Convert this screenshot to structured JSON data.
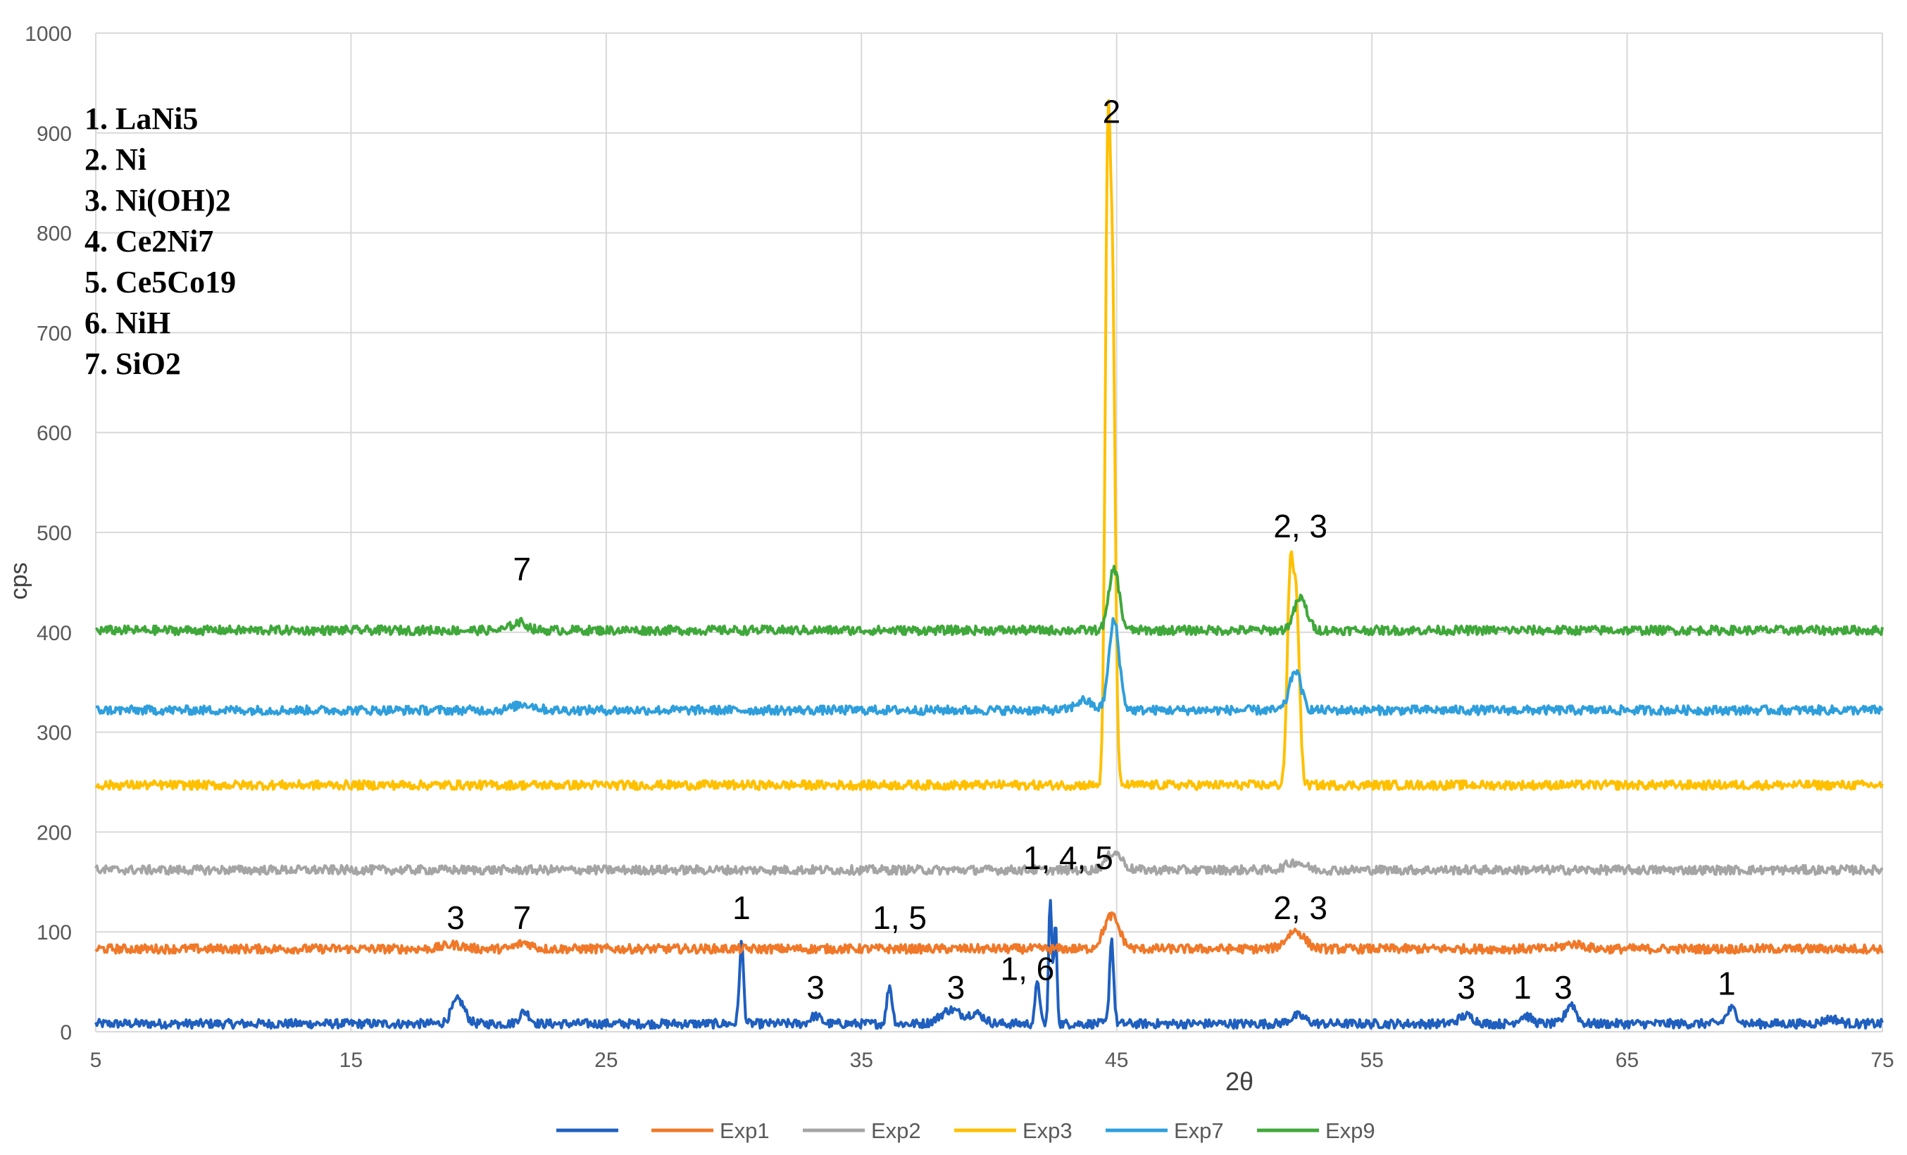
{
  "chart_data": {
    "type": "line",
    "title": "",
    "xlabel": "2θ",
    "ylabel": "cps",
    "xlim": [
      5,
      75
    ],
    "ylim": [
      0,
      1000
    ],
    "xticks": [
      5,
      15,
      25,
      35,
      45,
      55,
      65,
      75
    ],
    "yticks": [
      0,
      100,
      200,
      300,
      400,
      500,
      600,
      700,
      800,
      900,
      1000
    ],
    "grid": true,
    "legend_position": "bottom",
    "phase_list": [
      "1. LaNi5",
      "2. Ni",
      "3. Ni(OH)2",
      "4. Ce2Ni7",
      "5. Ce5Co19",
      "6. NiH",
      "7. SiO2"
    ],
    "series": [
      {
        "name": "",
        "color": "#1f5fbf",
        "baseline": 8,
        "peaks": [
          [
            19.2,
            24,
            0.25
          ],
          [
            21.8,
            12,
            0.2
          ],
          [
            30.3,
            82,
            0.08
          ],
          [
            33.2,
            8,
            0.2
          ],
          [
            36.1,
            38,
            0.1
          ],
          [
            38.5,
            14,
            0.4
          ],
          [
            39.5,
            10,
            0.3
          ],
          [
            41.9,
            45,
            0.08
          ],
          [
            42.4,
            128,
            0.06
          ],
          [
            42.6,
            100,
            0.06
          ],
          [
            44.8,
            85,
            0.08
          ],
          [
            52.1,
            8,
            0.3
          ],
          [
            58.7,
            8,
            0.3
          ],
          [
            61.0,
            8,
            0.25
          ],
          [
            62.8,
            20,
            0.2
          ],
          [
            69.1,
            15,
            0.2
          ],
          [
            73.0,
            5,
            0.3
          ]
        ]
      },
      {
        "name": "Exp1",
        "color": "#f07828",
        "baseline": 83,
        "peaks": [
          [
            19.0,
            4,
            0.4
          ],
          [
            21.8,
            6,
            0.3
          ],
          [
            44.8,
            33,
            0.3
          ],
          [
            52.0,
            18,
            0.35
          ],
          [
            62.9,
            5,
            0.4
          ]
        ]
      },
      {
        "name": "Exp2",
        "color": "#a5a5a5",
        "baseline": 162,
        "peaks": [
          [
            44.9,
            18,
            0.3
          ],
          [
            52.0,
            8,
            0.35
          ]
        ]
      },
      {
        "name": "Exp3",
        "color": "#ffc000",
        "baseline": 247,
        "peaks": [
          [
            44.65,
            610,
            0.1
          ],
          [
            44.85,
            440,
            0.1
          ],
          [
            51.8,
            205,
            0.12
          ],
          [
            52.05,
            170,
            0.12
          ]
        ]
      },
      {
        "name": "Exp7",
        "color": "#2e9fdc",
        "baseline": 322,
        "peaks": [
          [
            43.7,
            10,
            0.3
          ],
          [
            44.9,
            90,
            0.2
          ],
          [
            52.0,
            40,
            0.22
          ],
          [
            21.8,
            6,
            0.4
          ]
        ]
      },
      {
        "name": "Exp9",
        "color": "#3fa83a",
        "baseline": 402,
        "peaks": [
          [
            21.6,
            8,
            0.3
          ],
          [
            44.9,
            62,
            0.2
          ],
          [
            52.2,
            32,
            0.25
          ]
        ]
      }
    ],
    "annotations": [
      {
        "text": "2",
        "x": 44.8,
        "y": 910
      },
      {
        "text": "2, 3",
        "x": 52.2,
        "y": 495
      },
      {
        "text": "7",
        "x": 21.7,
        "y": 452
      },
      {
        "text": "1, 4, 5",
        "x": 43.1,
        "y": 163
      },
      {
        "text": "3",
        "x": 19.1,
        "y": 103
      },
      {
        "text": "7",
        "x": 21.7,
        "y": 103
      },
      {
        "text": "1",
        "x": 30.3,
        "y": 113
      },
      {
        "text": "1, 5",
        "x": 36.5,
        "y": 103
      },
      {
        "text": "2, 3",
        "x": 52.2,
        "y": 113
      },
      {
        "text": "3",
        "x": 33.2,
        "y": 33
      },
      {
        "text": "3",
        "x": 38.7,
        "y": 33
      },
      {
        "text": "1, 6",
        "x": 41.5,
        "y": 52
      },
      {
        "text": "3",
        "x": 58.7,
        "y": 33
      },
      {
        "text": "1",
        "x": 60.9,
        "y": 33
      },
      {
        "text": "3",
        "x": 62.5,
        "y": 33
      },
      {
        "text": "1",
        "x": 68.9,
        "y": 37
      }
    ]
  }
}
